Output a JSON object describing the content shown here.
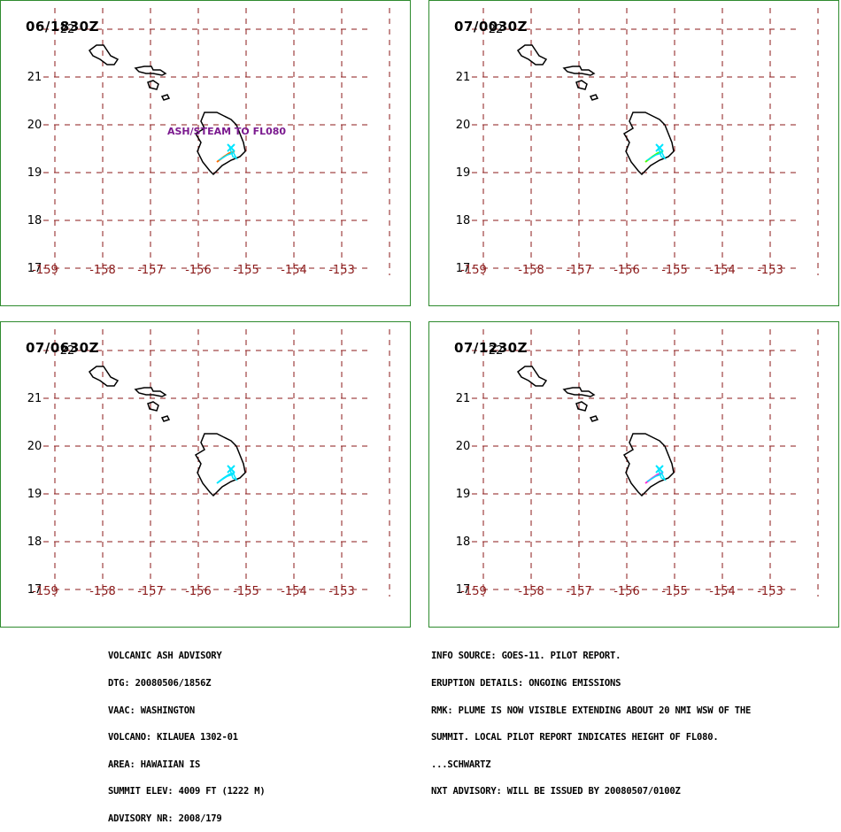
{
  "panels": [
    {
      "time": "06/1830Z",
      "note": "ASH/STEAM TO FL080",
      "plume_colors": [
        "#ff6a00",
        "#00e5ff"
      ]
    },
    {
      "time": "07/0030Z",
      "note": "",
      "plume_colors": [
        "#4cff00",
        "#00e5ff"
      ]
    },
    {
      "time": "07/0630Z",
      "note": "",
      "plume_colors": [
        "#00e5ff",
        "#00e5ff"
      ]
    },
    {
      "time": "07/1230Z",
      "note": "",
      "plume_colors": [
        "#ff2bd6",
        "#00e5ff"
      ]
    }
  ],
  "map": {
    "lat_ticks": [
      "21",
      "20",
      "19",
      "18",
      "17"
    ],
    "lat_top_tick": "22",
    "lon_ticks": [
      "-159",
      "-158",
      "-157",
      "-156",
      "-155",
      "-154",
      "-153"
    ],
    "grid_color": "#8b1a1a",
    "coast_color": "#000000",
    "border_color": "#2e8b2e"
  },
  "advisory_left": {
    "lines": [
      "VOLCANIC ASH ADVISORY",
      "DTG: 20080506/1856Z",
      "VAAC: WASHINGTON",
      "VOLCANO: KILAUEA 1302-01",
      "AREA: HAWAIIAN IS",
      "SUMMIT ELEV: 4009 FT (1222 M)",
      "ADVISORY NR: 2008/179"
    ]
  },
  "advisory_right": {
    "lines": [
      "INFO SOURCE: GOES-11. PILOT REPORT.",
      "ERUPTION DETAILS: ONGOING EMISSIONS",
      "RMK: PLUME IS NOW VISIBLE EXTENDING ABOUT 20 NMI WSW OF THE",
      "SUMMIT. LOCAL PILOT REPORT INDICATES HEIGHT OF FL080.",
      "...SCHWARTZ",
      "NXT ADVISORY: WILL BE ISSUED BY 20080507/0100Z"
    ]
  }
}
